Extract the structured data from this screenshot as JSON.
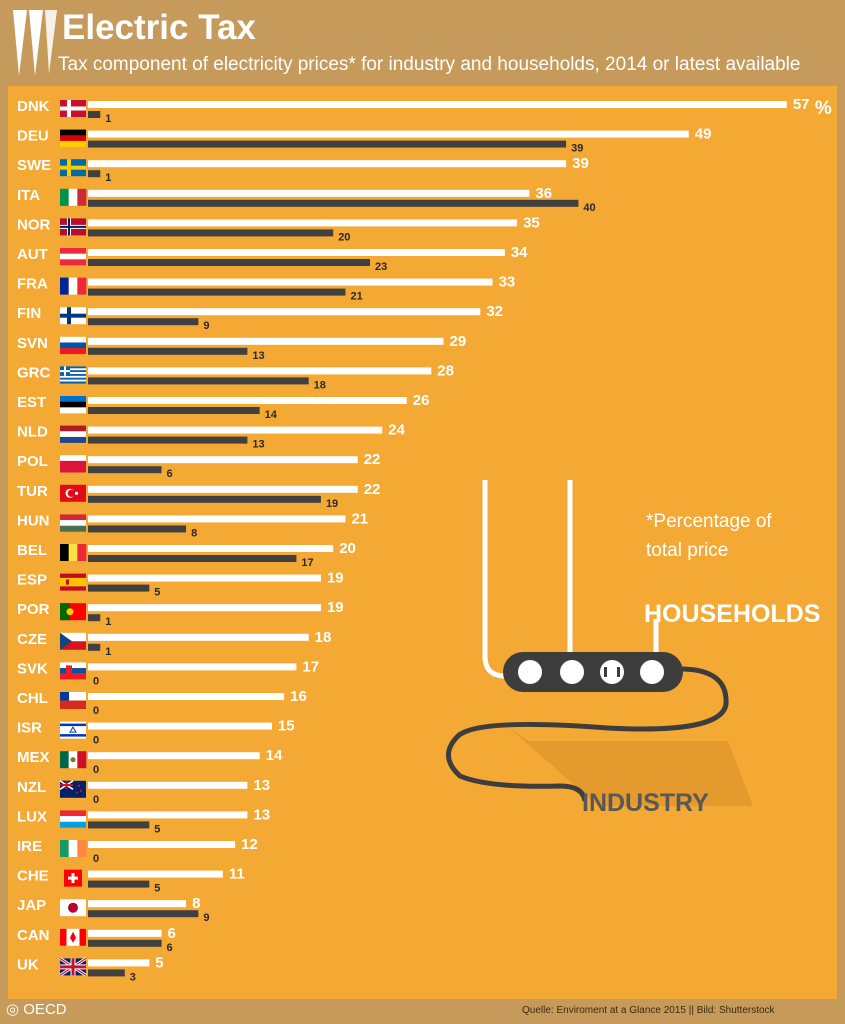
{
  "header": {
    "title": "Electric Tax",
    "subtitle": "Tax component of electricity prices* for industry and households, 2014 or latest available"
  },
  "legend": {
    "households": "HOUSEHOLDS",
    "industry": "INDUSTRY"
  },
  "footnote": "*Percentage of total price",
  "branding": {
    "oecd": "OECD",
    "logo_icon": "oecd-logo-icon"
  },
  "source": "Quelle: Enviroment at a Glance 2015 || Bild: Shutterstock",
  "colors": {
    "background": "#f4a935",
    "frame": "#c69a5b",
    "households_bar": "#ffffff",
    "industry_bar": "#404040"
  },
  "chart_data": {
    "type": "bar",
    "orientation": "horizontal",
    "unit_label": "%",
    "categories": [
      "DNK",
      "DEU",
      "SWE",
      "ITA",
      "NOR",
      "AUT",
      "FRA",
      "FIN",
      "SVN",
      "GRC",
      "EST",
      "NLD",
      "POL",
      "TUR",
      "HUN",
      "BEL",
      "ESP",
      "POR",
      "CZE",
      "SVK",
      "CHL",
      "ISR",
      "MEX",
      "NZL",
      "LUX",
      "IRE",
      "CHE",
      "JAP",
      "CAN",
      "UK"
    ],
    "series": [
      {
        "name": "HOUSEHOLDS",
        "color": "#ffffff",
        "values": [
          57,
          49,
          39,
          36,
          35,
          34,
          33,
          32,
          29,
          28,
          26,
          24,
          22,
          22,
          21,
          20,
          19,
          19,
          18,
          17,
          16,
          15,
          14,
          13,
          13,
          12,
          11,
          8,
          6,
          5
        ]
      },
      {
        "name": "INDUSTRY",
        "color": "#404040",
        "values": [
          1,
          39,
          1,
          40,
          20,
          23,
          21,
          9,
          13,
          18,
          14,
          13,
          6,
          19,
          8,
          17,
          5,
          1,
          1,
          0,
          0,
          0,
          0,
          0,
          5,
          0,
          5,
          9,
          6,
          3
        ]
      }
    ],
    "xlim": [
      0,
      57
    ],
    "axis_visible": false,
    "grid": false
  }
}
